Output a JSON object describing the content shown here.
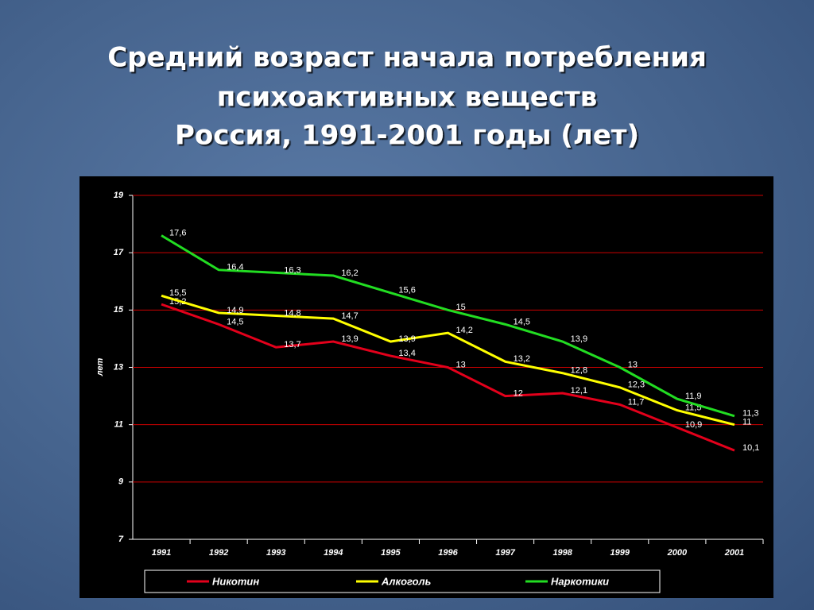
{
  "chart_data": {
    "type": "line",
    "title": [
      "Средний возраст начала потребления",
      "психоактивных веществ",
      "Россия, 1991-2001 годы (лет)"
    ],
    "y_label": "лет",
    "categories": [
      "1991",
      "1992",
      "1993",
      "1994",
      "1995",
      "1996",
      "1997",
      "1998",
      "1999",
      "2000",
      "2001"
    ],
    "series": [
      {
        "name": "Никотин",
        "color": "#e3001b",
        "values": [
          15.2,
          14.5,
          13.7,
          13.9,
          13.4,
          13,
          12,
          12.1,
          11.7,
          10.9,
          10.1
        ],
        "value_labels": [
          "15,2",
          "14,5",
          "13,7",
          "13,9",
          "13,4",
          "13",
          "12",
          "12,1",
          "11,7",
          "10,9",
          "10,1"
        ]
      },
      {
        "name": "Алкоголь",
        "color": "#ffff00",
        "values": [
          15.5,
          14.9,
          14.8,
          14.7,
          13.9,
          14.2,
          13.2,
          12.8,
          12.3,
          11.5,
          11
        ],
        "value_labels": [
          "15,5",
          "14,9",
          "14,8",
          "14,7",
          "13,9",
          "14,2",
          "13,2",
          "12,8",
          "12,3",
          "11,5",
          "11"
        ]
      },
      {
        "name": "Наркотики",
        "color": "#22dd22",
        "values": [
          17.6,
          16.4,
          16.3,
          16.2,
          15.6,
          15,
          14.5,
          13.9,
          13,
          11.9,
          11.3
        ],
        "value_labels": [
          "17,6",
          "16,4",
          "16,3",
          "16,2",
          "15,6",
          "15",
          "14,5",
          "13,9",
          "13",
          "11,9",
          "11,3"
        ]
      }
    ],
    "ylim": [
      7,
      19
    ],
    "yticks": [
      7,
      9,
      11,
      13,
      15,
      17,
      19
    ],
    "grid": true,
    "grid_color": "#cc0000",
    "legend": "bottom"
  }
}
